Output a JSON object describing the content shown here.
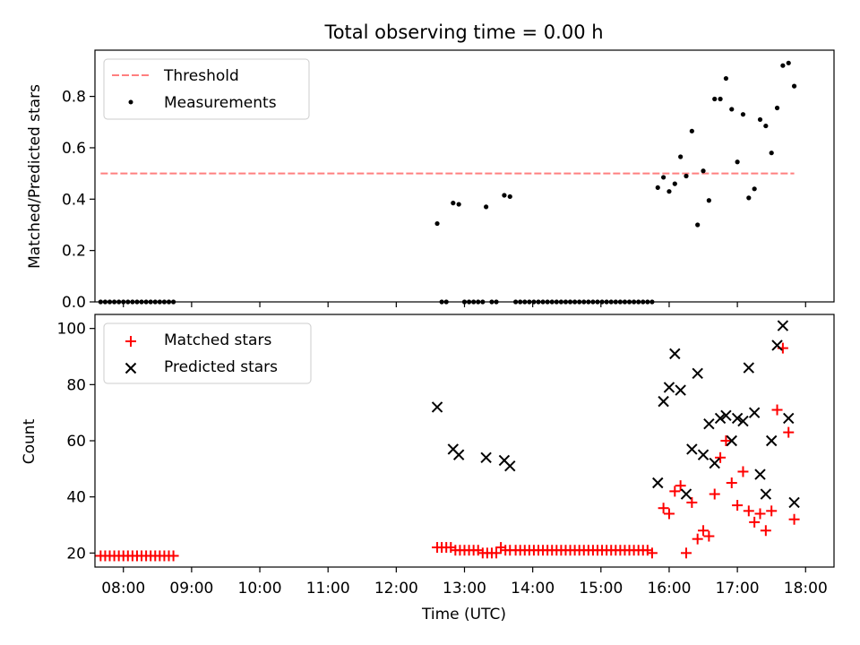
{
  "figure": {
    "title": "Total observing time = 0.00 h"
  },
  "chart_data": [
    {
      "type": "scatter",
      "ylabel": "Matched/Predicted stars",
      "xlim": [
        "07:35",
        "18:25"
      ],
      "ylim": [
        0,
        0.98
      ],
      "yticks": [
        "0.0",
        "0.2",
        "0.4",
        "0.6",
        "0.8"
      ],
      "ytick_values": [
        0,
        0.2,
        0.4,
        0.6,
        0.8
      ],
      "legend": {
        "position": "top-left",
        "entries": [
          "Threshold",
          "Measurements"
        ]
      },
      "series": [
        {
          "name": "Threshold",
          "kind": "dashed-line",
          "color": "#ff7f7f",
          "points": [
            [
              "07:40",
              0.5
            ],
            [
              "17:50",
              0.5
            ]
          ]
        },
        {
          "name": "Measurements",
          "kind": "dots",
          "color": "#000000",
          "points": [
            [
              "07:40",
              0
            ],
            [
              "07:44",
              0
            ],
            [
              "07:48",
              0
            ],
            [
              "07:52",
              0
            ],
            [
              "07:56",
              0
            ],
            [
              "08:00",
              0
            ],
            [
              "08:04",
              0
            ],
            [
              "08:08",
              0
            ],
            [
              "08:12",
              0
            ],
            [
              "08:16",
              0
            ],
            [
              "08:20",
              0
            ],
            [
              "08:24",
              0
            ],
            [
              "08:28",
              0
            ],
            [
              "08:32",
              0
            ],
            [
              "08:36",
              0
            ],
            [
              "08:40",
              0
            ],
            [
              "08:44",
              0
            ],
            [
              "12:36",
              0.305
            ],
            [
              "12:40",
              0
            ],
            [
              "12:44",
              0
            ],
            [
              "12:50",
              0.385
            ],
            [
              "12:55",
              0.38
            ],
            [
              "13:00",
              0
            ],
            [
              "13:04",
              0
            ],
            [
              "13:08",
              0
            ],
            [
              "13:12",
              0
            ],
            [
              "13:16",
              0
            ],
            [
              "13:19",
              0.37
            ],
            [
              "13:24",
              0
            ],
            [
              "13:28",
              0
            ],
            [
              "13:35",
              0.415
            ],
            [
              "13:40",
              0.41
            ],
            [
              "13:45",
              0
            ],
            [
              "13:49",
              0
            ],
            [
              "13:53",
              0
            ],
            [
              "13:57",
              0
            ],
            [
              "14:01",
              0
            ],
            [
              "14:05",
              0
            ],
            [
              "14:09",
              0
            ],
            [
              "14:13",
              0
            ],
            [
              "14:17",
              0
            ],
            [
              "14:21",
              0
            ],
            [
              "14:25",
              0
            ],
            [
              "14:29",
              0
            ],
            [
              "14:33",
              0
            ],
            [
              "14:37",
              0
            ],
            [
              "14:41",
              0
            ],
            [
              "14:45",
              0
            ],
            [
              "14:49",
              0
            ],
            [
              "14:53",
              0
            ],
            [
              "14:57",
              0
            ],
            [
              "15:01",
              0
            ],
            [
              "15:05",
              0
            ],
            [
              "15:09",
              0
            ],
            [
              "15:13",
              0
            ],
            [
              "15:17",
              0
            ],
            [
              "15:21",
              0
            ],
            [
              "15:25",
              0
            ],
            [
              "15:29",
              0
            ],
            [
              "15:33",
              0
            ],
            [
              "15:37",
              0
            ],
            [
              "15:41",
              0
            ],
            [
              "15:45",
              0
            ],
            [
              "15:50",
              0.445
            ],
            [
              "15:55",
              0.485
            ],
            [
              "16:00",
              0.43
            ],
            [
              "16:05",
              0.46
            ],
            [
              "16:10",
              0.565
            ],
            [
              "16:15",
              0.49
            ],
            [
              "16:20",
              0.665
            ],
            [
              "16:25",
              0.3
            ],
            [
              "16:30",
              0.51
            ],
            [
              "16:35",
              0.395
            ],
            [
              "16:40",
              0.79
            ],
            [
              "16:45",
              0.79
            ],
            [
              "16:50",
              0.87
            ],
            [
              "16:55",
              0.75
            ],
            [
              "17:00",
              0.545
            ],
            [
              "17:05",
              0.73
            ],
            [
              "17:10",
              0.405
            ],
            [
              "17:15",
              0.44
            ],
            [
              "17:20",
              0.71
            ],
            [
              "17:25",
              0.685
            ],
            [
              "17:30",
              0.58
            ],
            [
              "17:35",
              0.755
            ],
            [
              "17:40",
              0.92
            ],
            [
              "17:45",
              0.93
            ],
            [
              "17:50",
              0.84
            ]
          ]
        }
      ]
    },
    {
      "type": "scatter",
      "xlabel": "Time (UTC)",
      "ylabel": "Count",
      "xlim": [
        "07:35",
        "18:25"
      ],
      "ylim": [
        15,
        105
      ],
      "xticks": [
        "08:00",
        "09:00",
        "10:00",
        "11:00",
        "12:00",
        "13:00",
        "14:00",
        "15:00",
        "16:00",
        "17:00",
        "18:00"
      ],
      "yticks": [
        "20",
        "40",
        "60",
        "80",
        "100"
      ],
      "ytick_values": [
        20,
        40,
        60,
        80,
        100
      ],
      "legend": {
        "position": "top-left",
        "entries": [
          "Matched stars",
          "Predicted stars"
        ]
      },
      "series": [
        {
          "name": "Matched stars",
          "marker": "+",
          "color": "#ff0000",
          "points": [
            [
              "07:40",
              19
            ],
            [
              "07:44",
              19
            ],
            [
              "07:48",
              19
            ],
            [
              "07:52",
              19
            ],
            [
              "07:56",
              19
            ],
            [
              "08:00",
              19
            ],
            [
              "08:04",
              19
            ],
            [
              "08:08",
              19
            ],
            [
              "08:12",
              19
            ],
            [
              "08:16",
              19
            ],
            [
              "08:20",
              19
            ],
            [
              "08:24",
              19
            ],
            [
              "08:28",
              19
            ],
            [
              "08:32",
              19
            ],
            [
              "08:36",
              19
            ],
            [
              "08:40",
              19
            ],
            [
              "08:44",
              19
            ],
            [
              "12:36",
              22
            ],
            [
              "12:40",
              22
            ],
            [
              "12:44",
              22
            ],
            [
              "12:48",
              22
            ],
            [
              "12:52",
              21
            ],
            [
              "12:56",
              21
            ],
            [
              "13:00",
              21
            ],
            [
              "13:04",
              21
            ],
            [
              "13:08",
              21
            ],
            [
              "13:12",
              21
            ],
            [
              "13:16",
              20
            ],
            [
              "13:20",
              20
            ],
            [
              "13:24",
              20
            ],
            [
              "13:28",
              20
            ],
            [
              "13:32",
              22
            ],
            [
              "13:36",
              21
            ],
            [
              "13:40",
              21
            ],
            [
              "13:45",
              21
            ],
            [
              "13:49",
              21
            ],
            [
              "13:53",
              21
            ],
            [
              "13:57",
              21
            ],
            [
              "14:01",
              21
            ],
            [
              "14:05",
              21
            ],
            [
              "14:09",
              21
            ],
            [
              "14:13",
              21
            ],
            [
              "14:17",
              21
            ],
            [
              "14:21",
              21
            ],
            [
              "14:25",
              21
            ],
            [
              "14:29",
              21
            ],
            [
              "14:33",
              21
            ],
            [
              "14:37",
              21
            ],
            [
              "14:41",
              21
            ],
            [
              "14:45",
              21
            ],
            [
              "14:49",
              21
            ],
            [
              "14:53",
              21
            ],
            [
              "14:57",
              21
            ],
            [
              "15:01",
              21
            ],
            [
              "15:05",
              21
            ],
            [
              "15:09",
              21
            ],
            [
              "15:13",
              21
            ],
            [
              "15:17",
              21
            ],
            [
              "15:21",
              21
            ],
            [
              "15:25",
              21
            ],
            [
              "15:29",
              21
            ],
            [
              "15:33",
              21
            ],
            [
              "15:37",
              21
            ],
            [
              "15:41",
              21
            ],
            [
              "15:45",
              20
            ],
            [
              "15:55",
              36
            ],
            [
              "16:00",
              34
            ],
            [
              "16:05",
              42
            ],
            [
              "16:10",
              44
            ],
            [
              "16:15",
              20
            ],
            [
              "16:20",
              38
            ],
            [
              "16:25",
              25
            ],
            [
              "16:30",
              28
            ],
            [
              "16:35",
              26
            ],
            [
              "16:40",
              41
            ],
            [
              "16:45",
              54
            ],
            [
              "16:50",
              60
            ],
            [
              "16:55",
              45
            ],
            [
              "17:00",
              37
            ],
            [
              "17:05",
              49
            ],
            [
              "17:10",
              35
            ],
            [
              "17:15",
              31
            ],
            [
              "17:20",
              34
            ],
            [
              "17:25",
              28
            ],
            [
              "17:30",
              35
            ],
            [
              "17:35",
              71
            ],
            [
              "17:40",
              93
            ],
            [
              "17:45",
              63
            ],
            [
              "17:50",
              32
            ]
          ]
        },
        {
          "name": "Predicted stars",
          "marker": "x",
          "color": "#000000",
          "points": [
            [
              "12:36",
              72
            ],
            [
              "12:50",
              57
            ],
            [
              "12:55",
              55
            ],
            [
              "13:19",
              54
            ],
            [
              "13:35",
              53
            ],
            [
              "13:40",
              51
            ],
            [
              "15:50",
              45
            ],
            [
              "15:55",
              74
            ],
            [
              "16:00",
              79
            ],
            [
              "16:05",
              91
            ],
            [
              "16:10",
              78
            ],
            [
              "16:15",
              41
            ],
            [
              "16:20",
              57
            ],
            [
              "16:25",
              84
            ],
            [
              "16:30",
              55
            ],
            [
              "16:35",
              66
            ],
            [
              "16:40",
              52
            ],
            [
              "16:45",
              68
            ],
            [
              "16:50",
              69
            ],
            [
              "16:55",
              60
            ],
            [
              "17:00",
              68
            ],
            [
              "17:05",
              67
            ],
            [
              "17:10",
              86
            ],
            [
              "17:15",
              70
            ],
            [
              "17:20",
              48
            ],
            [
              "17:25",
              41
            ],
            [
              "17:30",
              60
            ],
            [
              "17:35",
              94
            ],
            [
              "17:40",
              101
            ],
            [
              "17:45",
              68
            ],
            [
              "17:50",
              38
            ]
          ]
        }
      ]
    }
  ]
}
